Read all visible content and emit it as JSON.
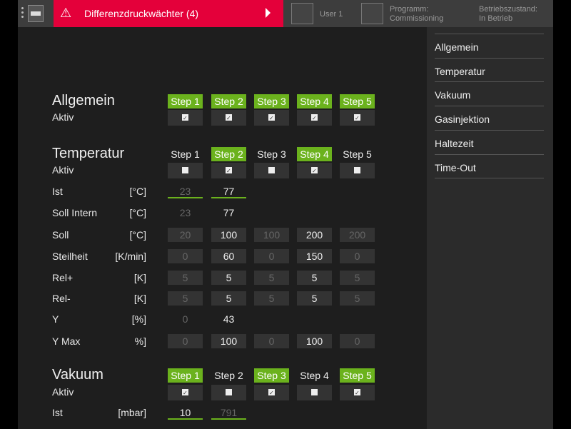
{
  "header": {
    "alarm_text": "Differenzdruckwächter (4)",
    "user": "User 1",
    "program_label": "Programm:",
    "program_value": "Commissioning",
    "state_label": "Betriebszustand:",
    "state_value": "In Betrieb",
    "alarm_color": "#e4003a"
  },
  "sidebar": {
    "items": [
      "Allgemein",
      "Temperatur",
      "Vakuum",
      "Gasinjektion",
      "Haltezeit",
      "Time-Out"
    ]
  },
  "accent": "#6bb21d",
  "steps": [
    "Step 1",
    "Step 2",
    "Step 3",
    "Step 4",
    "Step 5"
  ],
  "sections": [
    {
      "title": "Allgemein",
      "steps_active": [
        true,
        true,
        true,
        true,
        true
      ],
      "rows": [
        {
          "label": "Aktiv",
          "unit": "",
          "type": "checkbox",
          "values": [
            true,
            true,
            true,
            true,
            true
          ]
        }
      ]
    },
    {
      "title": "Temperatur",
      "steps_active": [
        false,
        true,
        false,
        true,
        false
      ],
      "rows": [
        {
          "label": "Aktiv",
          "unit": "",
          "type": "checkbox",
          "values": [
            false,
            true,
            false,
            true,
            false
          ]
        },
        {
          "label": "Ist",
          "unit": "[°C]",
          "type": "ist",
          "values": [
            "23",
            "77"
          ]
        },
        {
          "label": "Soll Intern",
          "unit": "[°C]",
          "type": "plain",
          "values": [
            "23",
            "77"
          ]
        },
        {
          "label": "Soll",
          "unit": "[°C]",
          "type": "input",
          "values": [
            "20",
            "100",
            "100",
            "200",
            "200"
          ]
        },
        {
          "label": "Steilheit",
          "unit": "[K/min]",
          "type": "input",
          "values": [
            "0",
            "60",
            "0",
            "150",
            "0"
          ]
        },
        {
          "label": "Rel+",
          "unit": "[K]",
          "type": "input",
          "values": [
            "5",
            "5",
            "5",
            "5",
            "5"
          ]
        },
        {
          "label": "Rel-",
          "unit": "[K]",
          "type": "input",
          "values": [
            "5",
            "5",
            "5",
            "5",
            "5"
          ]
        },
        {
          "label": "Y",
          "unit": "[%]",
          "type": "plain",
          "values": [
            "0",
            "43"
          ]
        },
        {
          "label": "Y Max",
          "unit": "%]",
          "type": "input",
          "values": [
            "0",
            "100",
            "0",
            "100",
            "0"
          ]
        }
      ]
    },
    {
      "title": "Vakuum",
      "steps_active": [
        true,
        false,
        true,
        false,
        true
      ],
      "rows": [
        {
          "label": "Aktiv",
          "unit": "",
          "type": "checkbox",
          "values": [
            true,
            false,
            true,
            false,
            true
          ]
        },
        {
          "label": "Ist",
          "unit": "[mbar]",
          "type": "ist",
          "values": [
            "10",
            "791"
          ]
        }
      ]
    }
  ]
}
